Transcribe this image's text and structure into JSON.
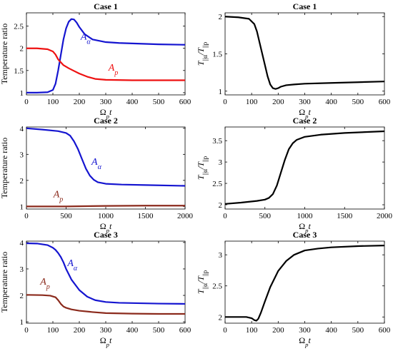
{
  "chart_data": [
    {
      "type": "line",
      "title": "Case 1",
      "xlabel": "Ω_p t",
      "ylabel": "Temperature ratio",
      "xlim": [
        0,
        600
      ],
      "ylim": [
        0.95,
        2.8
      ],
      "xticks": [
        0,
        100,
        200,
        300,
        400,
        500,
        600
      ],
      "yticks": [
        1,
        1.5,
        2,
        2.5
      ],
      "ytick_labels": [
        "1",
        "1.5",
        "2",
        "2.5"
      ],
      "grid": false,
      "series": [
        {
          "name": "A_α",
          "color": "#1515d0",
          "x": [
            0,
            40,
            80,
            100,
            110,
            120,
            130,
            140,
            150,
            160,
            170,
            180,
            190,
            200,
            220,
            250,
            300,
            350,
            400,
            500,
            600
          ],
          "y": [
            1.0,
            1.0,
            1.01,
            1.06,
            1.2,
            1.5,
            1.85,
            2.2,
            2.45,
            2.6,
            2.66,
            2.65,
            2.58,
            2.48,
            2.32,
            2.2,
            2.14,
            2.12,
            2.11,
            2.09,
            2.08
          ]
        },
        {
          "name": "A_p",
          "color": "#ee1111",
          "x": [
            0,
            40,
            80,
            100,
            110,
            120,
            140,
            160,
            180,
            200,
            230,
            260,
            300,
            400,
            500,
            600
          ],
          "y": [
            2.0,
            2.0,
            1.98,
            1.93,
            1.86,
            1.75,
            1.62,
            1.55,
            1.49,
            1.43,
            1.36,
            1.31,
            1.29,
            1.28,
            1.28,
            1.28
          ]
        }
      ],
      "annotations": [
        {
          "text": "A",
          "sub": "α",
          "x": 205,
          "y": 2.2,
          "color": "#1515d0"
        },
        {
          "text": "A",
          "sub": "p",
          "x": 310,
          "y": 1.5,
          "color": "#ee1111"
        }
      ]
    },
    {
      "type": "line",
      "title": "Case 1",
      "xlabel": "Ω_p t",
      "ylabel": "T||α/T||p",
      "xlim": [
        0,
        600
      ],
      "ylim": [
        0.95,
        2.05
      ],
      "xticks": [
        0,
        100,
        200,
        300,
        400,
        500,
        600
      ],
      "yticks": [
        1,
        1.5,
        2
      ],
      "ytick_labels": [
        "1",
        "1.5",
        "2"
      ],
      "grid": false,
      "series": [
        {
          "color": "#000000",
          "x": [
            0,
            50,
            90,
            110,
            120,
            130,
            140,
            150,
            160,
            170,
            180,
            190,
            200,
            210,
            230,
            260,
            300,
            400,
            500,
            600
          ],
          "y": [
            2.0,
            1.99,
            1.97,
            1.9,
            1.8,
            1.65,
            1.5,
            1.35,
            1.2,
            1.09,
            1.04,
            1.03,
            1.04,
            1.06,
            1.08,
            1.09,
            1.1,
            1.11,
            1.12,
            1.13
          ]
        }
      ]
    },
    {
      "type": "line",
      "title": "Case 2",
      "xlabel": "Ω_p t",
      "ylabel": "Temperature ratio",
      "xlim": [
        0,
        2000
      ],
      "ylim": [
        0.9,
        4.05
      ],
      "xticks": [
        0,
        500,
        1000,
        1500,
        2000
      ],
      "yticks": [
        1,
        2,
        3,
        4
      ],
      "ytick_labels": [
        "1",
        "2",
        "3",
        "4"
      ],
      "grid": false,
      "series": [
        {
          "name": "A_α",
          "color": "#1515d0",
          "x": [
            0,
            200,
            400,
            500,
            550,
            600,
            650,
            700,
            750,
            800,
            850,
            900,
            1000,
            1200,
            1500,
            2000
          ],
          "y": [
            4.0,
            3.95,
            3.89,
            3.82,
            3.72,
            3.5,
            3.2,
            2.82,
            2.45,
            2.18,
            2.02,
            1.93,
            1.87,
            1.84,
            1.82,
            1.79
          ]
        },
        {
          "name": "A_p",
          "color": "#8b2a1c",
          "x": [
            0,
            500,
            1000,
            1500,
            2000
          ],
          "y": [
            1.0,
            1.0,
            1.02,
            1.03,
            1.03
          ]
        }
      ],
      "annotations": [
        {
          "text": "A",
          "sub": "α",
          "x": 820,
          "y": 2.6,
          "color": "#1515d0"
        },
        {
          "text": "A",
          "sub": "p",
          "x": 340,
          "y": 1.35,
          "color": "#8b2a1c"
        }
      ]
    },
    {
      "type": "line",
      "title": "Case 2",
      "xlabel": "Ω_p t",
      "ylabel": "T||α/T||p",
      "xlim": [
        0,
        2000
      ],
      "ylim": [
        1.9,
        3.82
      ],
      "xticks": [
        0,
        500,
        1000,
        1500,
        2000
      ],
      "yticks": [
        2,
        2.5,
        3,
        3.5
      ],
      "ytick_labels": [
        "2",
        "2.5",
        "3",
        "3.5"
      ],
      "grid": false,
      "series": [
        {
          "color": "#000000",
          "x": [
            0,
            200,
            400,
            500,
            550,
            600,
            650,
            700,
            750,
            800,
            850,
            900,
            1000,
            1200,
            1500,
            2000
          ],
          "y": [
            2.02,
            2.05,
            2.09,
            2.12,
            2.16,
            2.25,
            2.45,
            2.75,
            3.05,
            3.3,
            3.44,
            3.52,
            3.59,
            3.64,
            3.68,
            3.72
          ]
        }
      ]
    },
    {
      "type": "line",
      "title": "Case 3",
      "xlabel": "Ω_p t",
      "ylabel": "Temperature ratio",
      "xlim": [
        0,
        600
      ],
      "ylim": [
        0.95,
        4.05
      ],
      "xticks": [
        0,
        100,
        200,
        300,
        400,
        500,
        600
      ],
      "yticks": [
        1,
        2,
        3,
        4
      ],
      "ytick_labels": [
        "1",
        "2",
        "3",
        "4"
      ],
      "grid": false,
      "series": [
        {
          "name": "A_α",
          "color": "#1515d0",
          "x": [
            0,
            40,
            80,
            100,
            110,
            120,
            130,
            140,
            150,
            170,
            200,
            230,
            260,
            300,
            350,
            400,
            500,
            600
          ],
          "y": [
            3.97,
            3.96,
            3.9,
            3.8,
            3.72,
            3.6,
            3.45,
            3.25,
            3.0,
            2.6,
            2.2,
            1.95,
            1.82,
            1.75,
            1.72,
            1.71,
            1.69,
            1.68
          ]
        },
        {
          "name": "A_p",
          "color": "#8b2a1c",
          "x": [
            0,
            60,
            90,
            110,
            120,
            130,
            140,
            150,
            170,
            200,
            250,
            300,
            400,
            500,
            600
          ],
          "y": [
            2.02,
            2.01,
            1.99,
            1.93,
            1.82,
            1.68,
            1.58,
            1.53,
            1.47,
            1.42,
            1.37,
            1.33,
            1.31,
            1.3,
            1.3
          ]
        }
      ],
      "annotations": [
        {
          "text": "A",
          "sub": "α",
          "x": 155,
          "y": 3.1,
          "color": "#1515d0"
        },
        {
          "text": "A",
          "sub": "p",
          "x": 52,
          "y": 2.4,
          "color": "#8b2a1c"
        }
      ]
    },
    {
      "type": "line",
      "title": "Case 3",
      "xlabel": "Ω_p t",
      "ylabel": "T||α/T||p",
      "xlim": [
        0,
        600
      ],
      "ylim": [
        1.9,
        3.22
      ],
      "xticks": [
        0,
        100,
        200,
        300,
        400,
        500,
        600
      ],
      "yticks": [
        2,
        2.5,
        3
      ],
      "ytick_labels": [
        "2",
        "2.5",
        "3"
      ],
      "grid": false,
      "series": [
        {
          "color": "#000000",
          "x": [
            0,
            40,
            80,
            100,
            110,
            118,
            125,
            135,
            150,
            170,
            200,
            230,
            260,
            300,
            350,
            400,
            500,
            600
          ],
          "y": [
            2.0,
            2.0,
            2.0,
            1.98,
            1.95,
            1.94,
            1.97,
            2.07,
            2.25,
            2.48,
            2.74,
            2.9,
            3.0,
            3.07,
            3.1,
            3.12,
            3.14,
            3.15
          ]
        }
      ]
    }
  ]
}
